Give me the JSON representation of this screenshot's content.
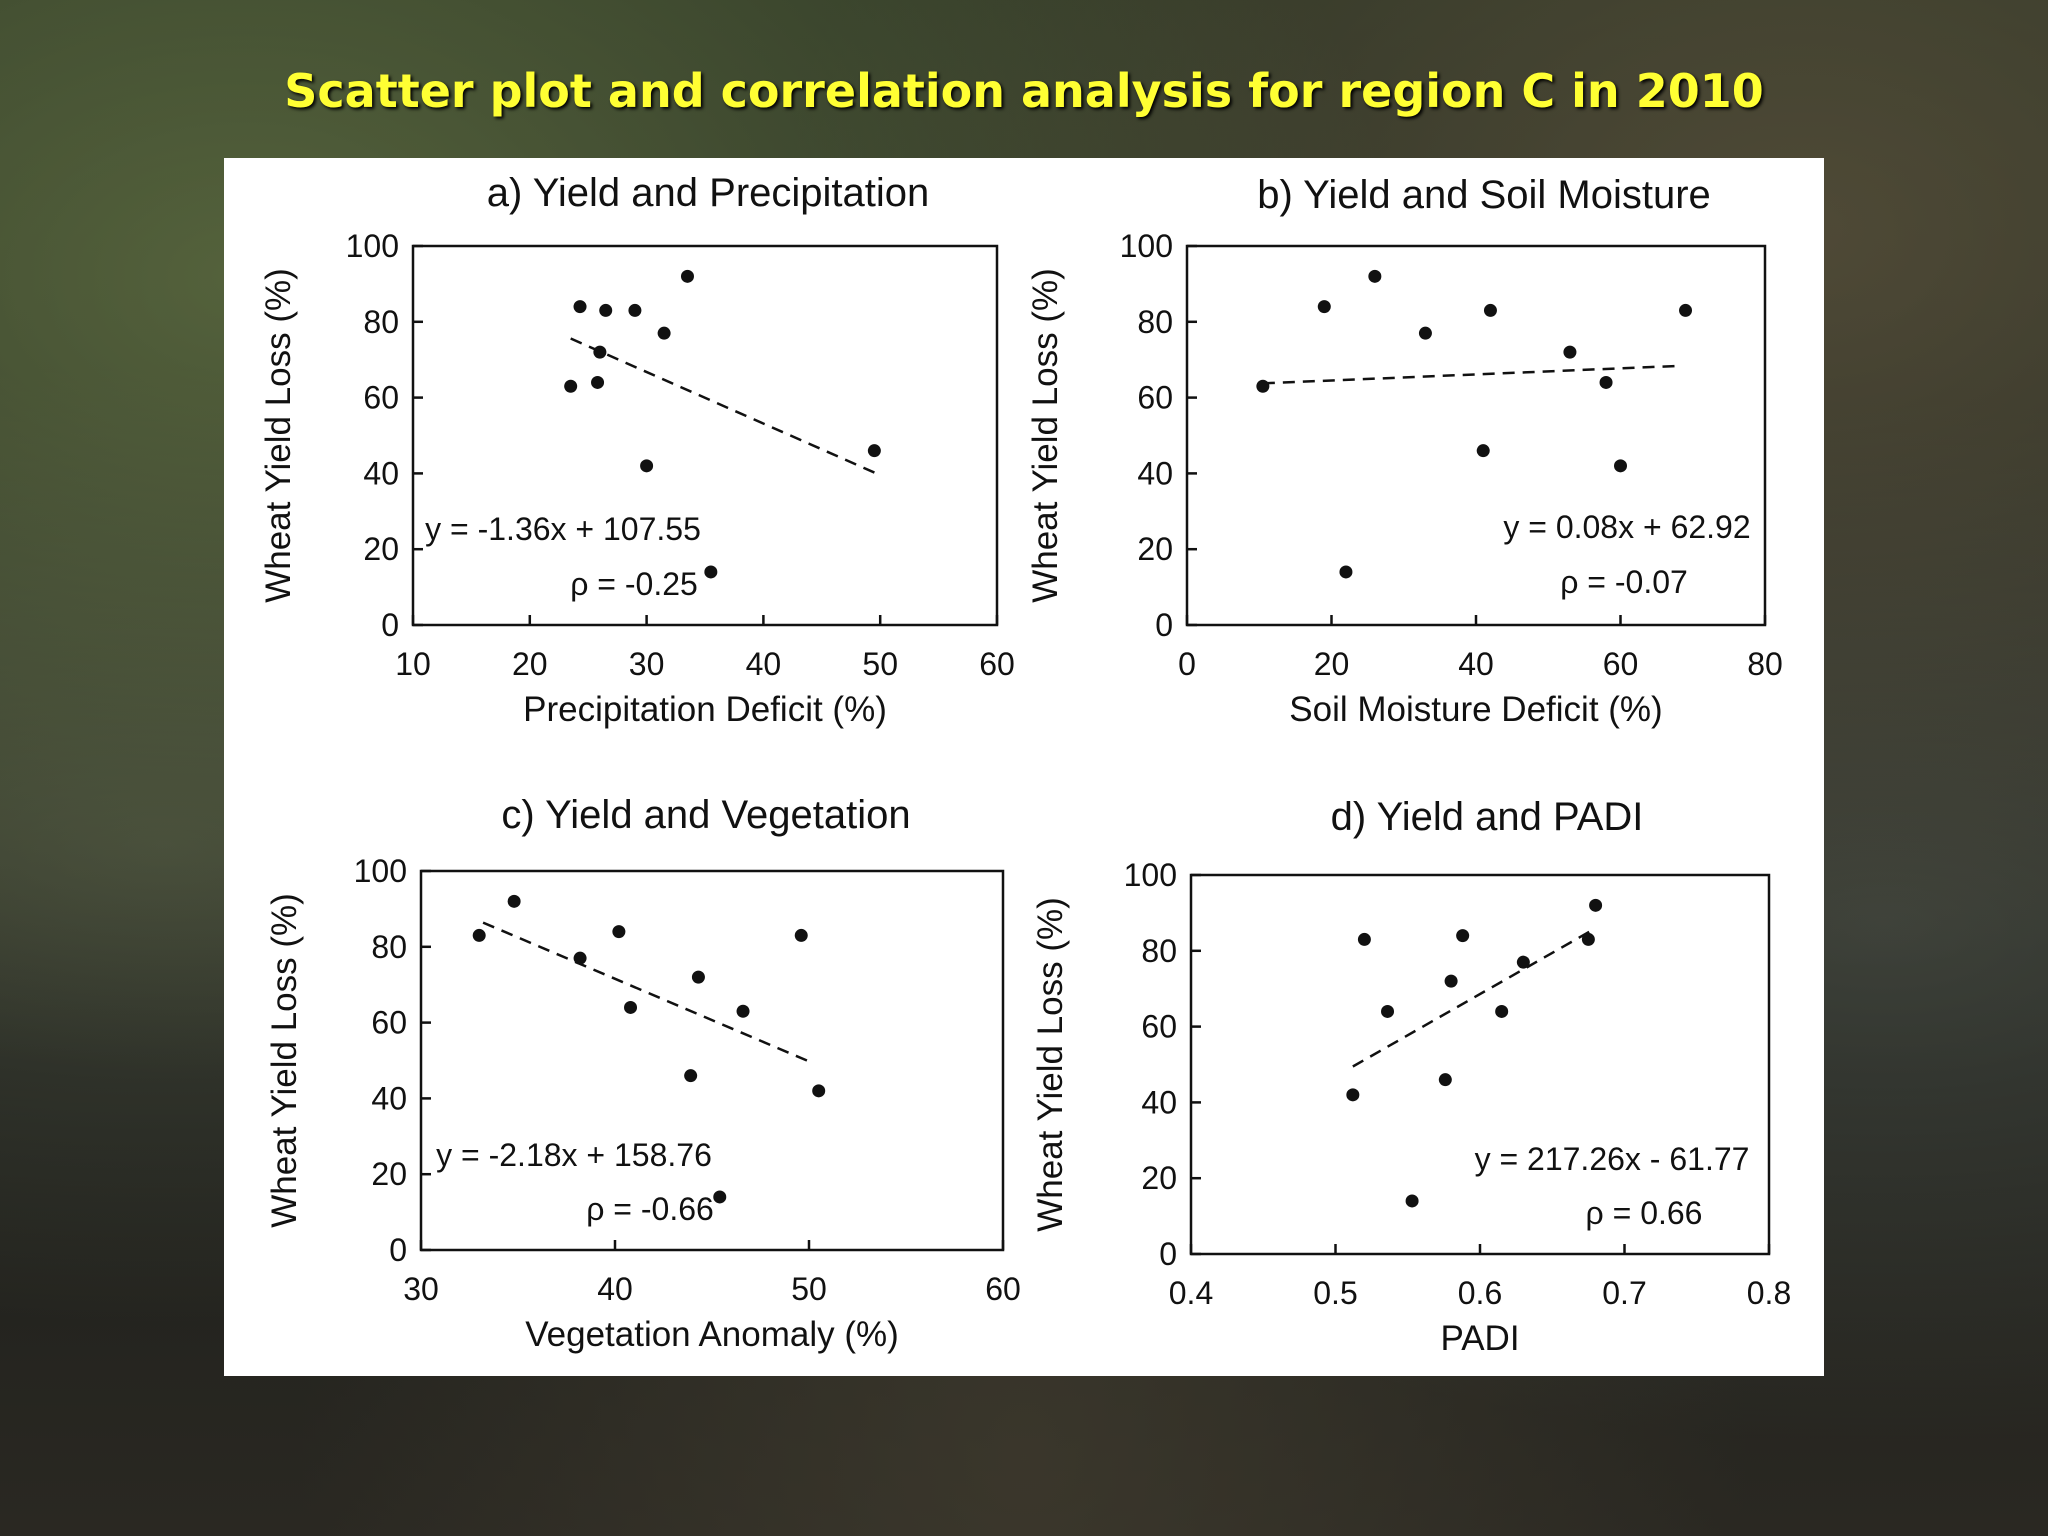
{
  "page": {
    "title": "Scatter plot and correlation analysis for region C in 2010",
    "title_color": "#ffff33"
  },
  "chart_data": [
    {
      "type": "scatter",
      "title": "a) Yield and Precipitation",
      "xlabel": "Precipitation Deficit (%)",
      "ylabel": "Wheat Yield Loss (%)",
      "xlim": [
        10,
        60
      ],
      "ylim": [
        0,
        100
      ],
      "xticks": [
        10,
        20,
        30,
        40,
        50,
        60
      ],
      "yticks": [
        0,
        20,
        40,
        60,
        80,
        100
      ],
      "points": [
        [
          24.3,
          84
        ],
        [
          26.5,
          83
        ],
        [
          29,
          83
        ],
        [
          33.5,
          92
        ],
        [
          31.5,
          77
        ],
        [
          26,
          72
        ],
        [
          23.5,
          63
        ],
        [
          25.8,
          64
        ],
        [
          30,
          42
        ],
        [
          35.5,
          14
        ],
        [
          49.5,
          46
        ]
      ],
      "trendline": {
        "slope": -1.36,
        "intercept": 107.55,
        "x_range": [
          23.5,
          50
        ]
      },
      "equation": "y = -1.36x + 107.55",
      "rho": "ρ = -0.25"
    },
    {
      "type": "scatter",
      "title": "b) Yield and Soil Moisture",
      "xlabel": "Soil Moisture Deficit (%)",
      "ylabel": "Wheat Yield Loss (%)",
      "xlim": [
        0,
        80
      ],
      "ylim": [
        0,
        100
      ],
      "xticks": [
        0,
        20,
        40,
        60,
        80
      ],
      "yticks": [
        0,
        20,
        40,
        60,
        80,
        100
      ],
      "points": [
        [
          10.5,
          63
        ],
        [
          19,
          84
        ],
        [
          26,
          92
        ],
        [
          33,
          77
        ],
        [
          42,
          83
        ],
        [
          53,
          72
        ],
        [
          69,
          83
        ],
        [
          58,
          64
        ],
        [
          41,
          46
        ],
        [
          60,
          42
        ],
        [
          22,
          14
        ]
      ],
      "trendline": {
        "slope": 0.08,
        "intercept": 62.92,
        "x_range": [
          10.5,
          67.5
        ]
      },
      "equation": "y = 0.08x + 62.92",
      "rho": "ρ = -0.07"
    },
    {
      "type": "scatter",
      "title": "c) Yield and Vegetation",
      "xlabel": "Vegetation Anomaly (%)",
      "ylabel": "Wheat Yield Loss (%)",
      "xlim": [
        30,
        60
      ],
      "ylim": [
        0,
        100
      ],
      "xticks": [
        30,
        40,
        50,
        60
      ],
      "yticks": [
        0,
        20,
        40,
        60,
        80,
        100
      ],
      "points": [
        [
          33,
          83
        ],
        [
          34.8,
          92
        ],
        [
          38.2,
          77
        ],
        [
          40.2,
          84
        ],
        [
          40.8,
          64
        ],
        [
          44.3,
          72
        ],
        [
          46.6,
          63
        ],
        [
          49.6,
          83
        ],
        [
          43.9,
          46
        ],
        [
          50.5,
          42
        ],
        [
          45.4,
          14
        ]
      ],
      "trendline": {
        "slope": -2.18,
        "intercept": 158.76,
        "x_range": [
          33.2,
          50.2
        ]
      },
      "equation": "y = -2.18x + 158.76",
      "rho": "ρ = -0.66"
    },
    {
      "type": "scatter",
      "title": "d) Yield and PADI",
      "xlabel": "PADI",
      "ylabel": "Wheat Yield Loss (%)",
      "xlim": [
        0.4,
        0.8
      ],
      "ylim": [
        0,
        100
      ],
      "xticks": [
        0.4,
        0.5,
        0.6,
        0.7,
        0.8
      ],
      "yticks": [
        0,
        20,
        40,
        60,
        80,
        100
      ],
      "points": [
        [
          0.52,
          83
        ],
        [
          0.536,
          64
        ],
        [
          0.58,
          72
        ],
        [
          0.588,
          84
        ],
        [
          0.615,
          64
        ],
        [
          0.63,
          77
        ],
        [
          0.675,
          83
        ],
        [
          0.68,
          92
        ],
        [
          0.512,
          42
        ],
        [
          0.576,
          46
        ],
        [
          0.553,
          14
        ]
      ],
      "trendline": {
        "slope": 217.26,
        "intercept": -61.77,
        "x_range": [
          0.512,
          0.677
        ]
      },
      "equation": "y = 217.26x - 61.77",
      "rho": "ρ = 0.66"
    }
  ]
}
